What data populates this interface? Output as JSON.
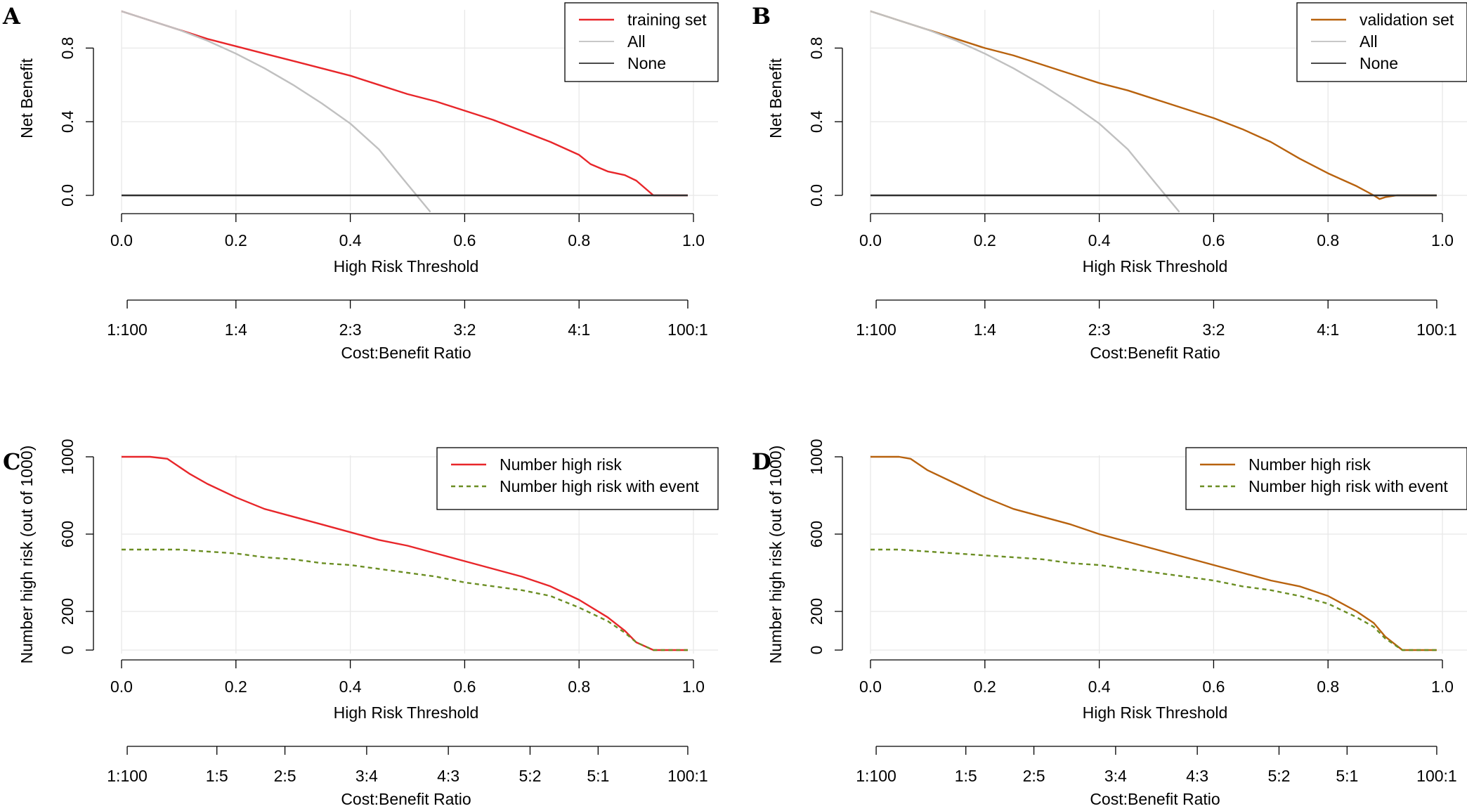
{
  "colors": {
    "training": "#e8262a",
    "validation": "#b8620e",
    "all": "#c0c0c0",
    "none": "#303030",
    "event": "#6b8e23"
  },
  "chart_data": [
    {
      "panel": "A",
      "type": "line",
      "title": "",
      "xlabel": "High Risk Threshold",
      "ylabel": "Net Benefit",
      "xlim": [
        0,
        1
      ],
      "ylim": [
        -0.1,
        1.0
      ],
      "x_ticks": [
        0,
        0.2,
        0.4,
        0.6,
        0.8,
        1.0
      ],
      "x_tick_labels": [
        "0.0",
        "0.2",
        "0.4",
        "0.6",
        "0.8",
        "1.0"
      ],
      "y_ticks": [
        0,
        0.4,
        0.8
      ],
      "y_tick_labels": [
        "0.0",
        "0.4",
        "0.8"
      ],
      "cost_benefit_axis": {
        "label": "Cost:Benefit Ratio",
        "ticks": [
          0.0099,
          0.2,
          0.4,
          0.6,
          0.8,
          0.9901
        ],
        "tick_labels": [
          "1:100",
          "1:4",
          "2:3",
          "3:2",
          "4:1",
          "100:1"
        ]
      },
      "legend": {
        "position": "top-right",
        "entries": [
          "training set",
          "All",
          "None"
        ]
      },
      "series": [
        {
          "name": "training set",
          "color_key": "training",
          "dash": "",
          "x": [
            0,
            0.05,
            0.1,
            0.15,
            0.2,
            0.25,
            0.3,
            0.35,
            0.4,
            0.45,
            0.5,
            0.55,
            0.6,
            0.65,
            0.7,
            0.75,
            0.8,
            0.82,
            0.85,
            0.88,
            0.9,
            0.93,
            0.99
          ],
          "y": [
            1.0,
            0.95,
            0.9,
            0.85,
            0.81,
            0.77,
            0.73,
            0.69,
            0.65,
            0.6,
            0.55,
            0.51,
            0.46,
            0.41,
            0.35,
            0.29,
            0.22,
            0.17,
            0.13,
            0.11,
            0.08,
            0.0,
            0.0
          ]
        },
        {
          "name": "All",
          "color_key": "all",
          "dash": "",
          "x": [
            0,
            0.05,
            0.1,
            0.15,
            0.2,
            0.25,
            0.3,
            0.35,
            0.4,
            0.45,
            0.5,
            0.54
          ],
          "y": [
            1.0,
            0.95,
            0.9,
            0.84,
            0.77,
            0.69,
            0.6,
            0.5,
            0.39,
            0.25,
            0.06,
            -0.09
          ]
        },
        {
          "name": "None",
          "color_key": "none",
          "dash": "",
          "x": [
            0,
            0.99
          ],
          "y": [
            0,
            0
          ]
        }
      ]
    },
    {
      "panel": "B",
      "type": "line",
      "title": "",
      "xlabel": "High Risk Threshold",
      "ylabel": "Net Benefit",
      "xlim": [
        0,
        1
      ],
      "ylim": [
        -0.1,
        1.0
      ],
      "x_ticks": [
        0,
        0.2,
        0.4,
        0.6,
        0.8,
        1.0
      ],
      "x_tick_labels": [
        "0.0",
        "0.2",
        "0.4",
        "0.6",
        "0.8",
        "1.0"
      ],
      "y_ticks": [
        0,
        0.4,
        0.8
      ],
      "y_tick_labels": [
        "0.0",
        "0.4",
        "0.8"
      ],
      "cost_benefit_axis": {
        "label": "Cost:Benefit Ratio",
        "ticks": [
          0.0099,
          0.2,
          0.4,
          0.6,
          0.8,
          0.9901
        ],
        "tick_labels": [
          "1:100",
          "1:4",
          "2:3",
          "3:2",
          "4:1",
          "100:1"
        ]
      },
      "legend": {
        "position": "top-right",
        "entries": [
          "validation set",
          "All",
          "None"
        ]
      },
      "series": [
        {
          "name": "validation set",
          "color_key": "validation",
          "dash": "",
          "x": [
            0,
            0.05,
            0.1,
            0.15,
            0.2,
            0.25,
            0.3,
            0.35,
            0.4,
            0.45,
            0.5,
            0.55,
            0.6,
            0.65,
            0.7,
            0.75,
            0.8,
            0.85,
            0.88,
            0.89,
            0.9,
            0.92,
            0.99
          ],
          "y": [
            1.0,
            0.95,
            0.9,
            0.85,
            0.8,
            0.76,
            0.71,
            0.66,
            0.61,
            0.57,
            0.52,
            0.47,
            0.42,
            0.36,
            0.29,
            0.2,
            0.12,
            0.05,
            0.0,
            -0.02,
            -0.01,
            0.0,
            0.0
          ]
        },
        {
          "name": "All",
          "color_key": "all",
          "dash": "",
          "x": [
            0,
            0.05,
            0.1,
            0.15,
            0.2,
            0.25,
            0.3,
            0.35,
            0.4,
            0.45,
            0.5,
            0.54
          ],
          "y": [
            1.0,
            0.95,
            0.9,
            0.84,
            0.77,
            0.69,
            0.6,
            0.5,
            0.39,
            0.25,
            0.06,
            -0.09
          ]
        },
        {
          "name": "None",
          "color_key": "none",
          "dash": "",
          "x": [
            0,
            0.99
          ],
          "y": [
            0,
            0
          ]
        }
      ]
    },
    {
      "panel": "C",
      "type": "line",
      "title": "",
      "xlabel": "High Risk Threshold",
      "ylabel": "Number high risk (out of 1000)",
      "xlim": [
        0,
        1
      ],
      "ylim": [
        0,
        1000
      ],
      "x_ticks": [
        0,
        0.2,
        0.4,
        0.6,
        0.8,
        1.0
      ],
      "x_tick_labels": [
        "0.0",
        "0.2",
        "0.4",
        "0.6",
        "0.8",
        "1.0"
      ],
      "y_ticks": [
        0,
        200,
        600,
        1000
      ],
      "y_tick_labels": [
        "0",
        "200",
        "600",
        "1000"
      ],
      "cost_benefit_axis": {
        "label": "Cost:Benefit Ratio",
        "ticks": [
          0.0099,
          0.1667,
          0.2857,
          0.4286,
          0.5714,
          0.7143,
          0.8333,
          0.9901
        ],
        "tick_labels": [
          "1:100",
          "1:5",
          "2:5",
          "3:4",
          "4:3",
          "5:2",
          "5:1",
          "100:1"
        ]
      },
      "legend": {
        "position": "top-right",
        "entries": [
          "Number high risk",
          "Number high risk with event"
        ]
      },
      "series": [
        {
          "name": "Number high risk",
          "color_key": "training",
          "dash": "",
          "x": [
            0,
            0.05,
            0.08,
            0.1,
            0.12,
            0.15,
            0.2,
            0.25,
            0.3,
            0.35,
            0.4,
            0.45,
            0.5,
            0.55,
            0.6,
            0.65,
            0.7,
            0.75,
            0.8,
            0.85,
            0.88,
            0.9,
            0.93,
            0.99
          ],
          "y": [
            1000,
            1000,
            990,
            950,
            910,
            860,
            790,
            730,
            690,
            650,
            610,
            570,
            540,
            500,
            460,
            420,
            380,
            330,
            260,
            170,
            100,
            40,
            0,
            0
          ]
        },
        {
          "name": "Number high risk with event",
          "color_key": "event",
          "dash": "6,5",
          "x": [
            0,
            0.05,
            0.1,
            0.15,
            0.2,
            0.25,
            0.3,
            0.35,
            0.4,
            0.45,
            0.5,
            0.55,
            0.6,
            0.65,
            0.7,
            0.75,
            0.8,
            0.85,
            0.88,
            0.9,
            0.93,
            0.99
          ],
          "y": [
            520,
            520,
            520,
            510,
            500,
            480,
            470,
            450,
            440,
            420,
            400,
            380,
            350,
            330,
            310,
            280,
            220,
            150,
            90,
            40,
            0,
            0
          ]
        }
      ]
    },
    {
      "panel": "D",
      "type": "line",
      "title": "",
      "xlabel": "High Risk Threshold",
      "ylabel": "Number high risk (out of 1000)",
      "xlim": [
        0,
        1
      ],
      "ylim": [
        0,
        1000
      ],
      "x_ticks": [
        0,
        0.2,
        0.4,
        0.6,
        0.8,
        1.0
      ],
      "x_tick_labels": [
        "0.0",
        "0.2",
        "0.4",
        "0.6",
        "0.8",
        "1.0"
      ],
      "y_ticks": [
        0,
        200,
        600,
        1000
      ],
      "y_tick_labels": [
        "0",
        "200",
        "600",
        "1000"
      ],
      "cost_benefit_axis": {
        "label": "Cost:Benefit Ratio",
        "ticks": [
          0.0099,
          0.1667,
          0.2857,
          0.4286,
          0.5714,
          0.7143,
          0.8333,
          0.9901
        ],
        "tick_labels": [
          "1:100",
          "1:5",
          "2:5",
          "3:4",
          "4:3",
          "5:2",
          "5:1",
          "100:1"
        ]
      },
      "legend": {
        "position": "top-right",
        "entries": [
          "Number high risk",
          "Number high risk with event"
        ]
      },
      "series": [
        {
          "name": "Number high risk",
          "color_key": "validation",
          "dash": "",
          "x": [
            0,
            0.05,
            0.07,
            0.1,
            0.15,
            0.2,
            0.25,
            0.3,
            0.35,
            0.4,
            0.45,
            0.5,
            0.55,
            0.6,
            0.65,
            0.7,
            0.75,
            0.8,
            0.85,
            0.88,
            0.9,
            0.93,
            0.99
          ],
          "y": [
            1000,
            1000,
            990,
            930,
            860,
            790,
            730,
            690,
            650,
            600,
            560,
            520,
            480,
            440,
            400,
            360,
            330,
            280,
            200,
            140,
            70,
            0,
            0
          ]
        },
        {
          "name": "Number high risk with event",
          "color_key": "event",
          "dash": "6,5",
          "x": [
            0,
            0.05,
            0.1,
            0.15,
            0.2,
            0.25,
            0.3,
            0.35,
            0.4,
            0.45,
            0.5,
            0.55,
            0.6,
            0.65,
            0.7,
            0.75,
            0.8,
            0.85,
            0.88,
            0.9,
            0.93,
            0.99
          ],
          "y": [
            520,
            520,
            510,
            500,
            490,
            480,
            470,
            450,
            440,
            420,
            400,
            380,
            360,
            330,
            310,
            280,
            240,
            170,
            120,
            60,
            0,
            0
          ]
        }
      ]
    }
  ]
}
